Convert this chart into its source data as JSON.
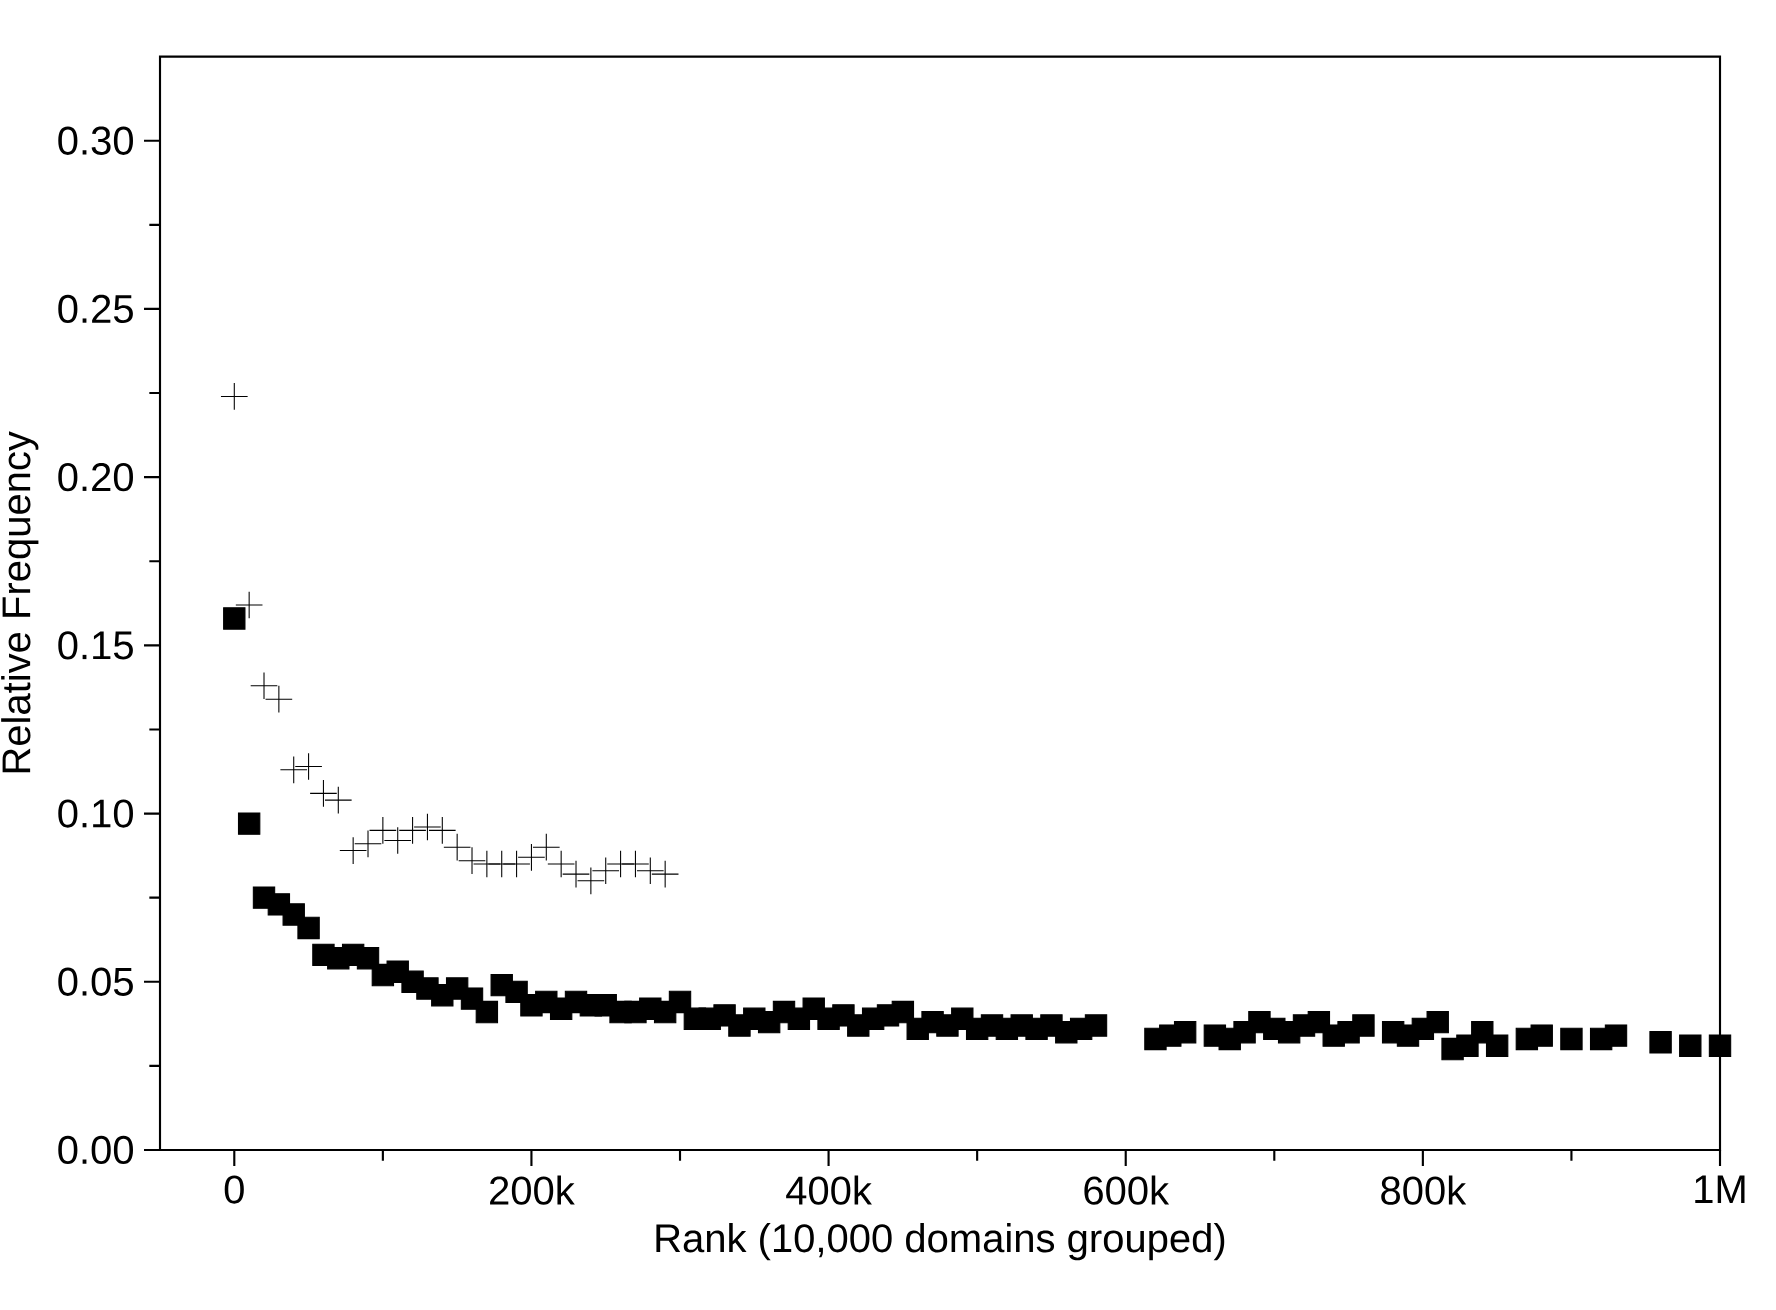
{
  "chart_data": {
    "type": "scatter",
    "xlabel": "Rank (10,000 domains grouped)",
    "ylabel": "Relative Frequency",
    "xlim": [
      -50000,
      1000000
    ],
    "ylim": [
      0,
      0.325
    ],
    "xticks": [
      {
        "value": 0,
        "label": "0"
      },
      {
        "value": 200000,
        "label": "200k"
      },
      {
        "value": 400000,
        "label": "400k"
      },
      {
        "value": 600000,
        "label": "600k"
      },
      {
        "value": 800000,
        "label": "800k"
      },
      {
        "value": 1000000,
        "label": "1M"
      }
    ],
    "yticks": [
      {
        "value": 0,
        "label": "0.00"
      },
      {
        "value": 0.05,
        "label": "0.05"
      },
      {
        "value": 0.1,
        "label": "0.10"
      },
      {
        "value": 0.15,
        "label": "0.15"
      },
      {
        "value": 0.2,
        "label": "0.20"
      },
      {
        "value": 0.25,
        "label": "0.25"
      },
      {
        "value": 0.3,
        "label": "0.30"
      }
    ],
    "grid": false,
    "series": [
      {
        "color": "#000000",
        "marker": "cross",
        "x": [
          0,
          10000,
          20000,
          30000,
          40000,
          50000,
          60000,
          70000,
          80000,
          90000,
          100000,
          110000,
          120000,
          130000,
          140000,
          150000,
          160000,
          170000,
          180000,
          190000,
          200000,
          210000,
          220000,
          230000,
          240000,
          250000,
          260000,
          270000,
          280000,
          290000
        ],
        "values": [
          0.224,
          0.162,
          0.138,
          0.134,
          0.113,
          0.114,
          0.106,
          0.104,
          0.089,
          0.091,
          0.095,
          0.092,
          0.095,
          0.096,
          0.095,
          0.09,
          0.086,
          0.085,
          0.085,
          0.085,
          0.087,
          0.09,
          0.085,
          0.082,
          0.08,
          0.083,
          0.085,
          0.085,
          0.083,
          0.082
        ]
      },
      {
        "color": "#000000",
        "marker": "square",
        "x": [
          0,
          10000,
          20000,
          30000,
          40000,
          50000,
          60000,
          70000,
          80000,
          90000,
          100000,
          110000,
          120000,
          130000,
          140000,
          150000,
          160000,
          170000,
          180000,
          190000,
          200000,
          210000,
          220000,
          230000,
          240000,
          250000,
          260000,
          270000,
          280000,
          290000,
          300000,
          310000,
          320000,
          330000,
          340000,
          350000,
          360000,
          370000,
          380000,
          390000,
          400000,
          410000,
          420000,
          430000,
          440000,
          450000,
          460000,
          470000,
          480000,
          490000,
          500000,
          510000,
          520000,
          530000,
          540000,
          550000,
          560000,
          570000,
          580000,
          620000,
          630000,
          640000,
          660000,
          670000,
          680000,
          690000,
          700000,
          710000,
          720000,
          730000,
          740000,
          750000,
          760000,
          780000,
          790000,
          800000,
          810000,
          820000,
          830000,
          840000,
          850000,
          870000,
          880000,
          900000,
          920000,
          930000,
          960000,
          980000,
          1000000
        ],
        "values": [
          0.158,
          0.097,
          0.075,
          0.073,
          0.07,
          0.066,
          0.058,
          0.057,
          0.058,
          0.057,
          0.052,
          0.053,
          0.05,
          0.048,
          0.046,
          0.048,
          0.045,
          0.041,
          0.049,
          0.047,
          0.043,
          0.044,
          0.042,
          0.044,
          0.043,
          0.043,
          0.041,
          0.041,
          0.042,
          0.041,
          0.044,
          0.039,
          0.039,
          0.04,
          0.037,
          0.039,
          0.038,
          0.041,
          0.039,
          0.042,
          0.039,
          0.04,
          0.037,
          0.039,
          0.04,
          0.041,
          0.036,
          0.038,
          0.037,
          0.039,
          0.036,
          0.037,
          0.036,
          0.037,
          0.036,
          0.037,
          0.035,
          0.036,
          0.037,
          0.033,
          0.034,
          0.035,
          0.034,
          0.033,
          0.035,
          0.038,
          0.036,
          0.035,
          0.037,
          0.038,
          0.034,
          0.035,
          0.037,
          0.035,
          0.034,
          0.036,
          0.038,
          0.03,
          0.031,
          0.035,
          0.031,
          0.033,
          0.034,
          0.033,
          0.033,
          0.034,
          0.032,
          0.031,
          0.031
        ]
      }
    ]
  }
}
